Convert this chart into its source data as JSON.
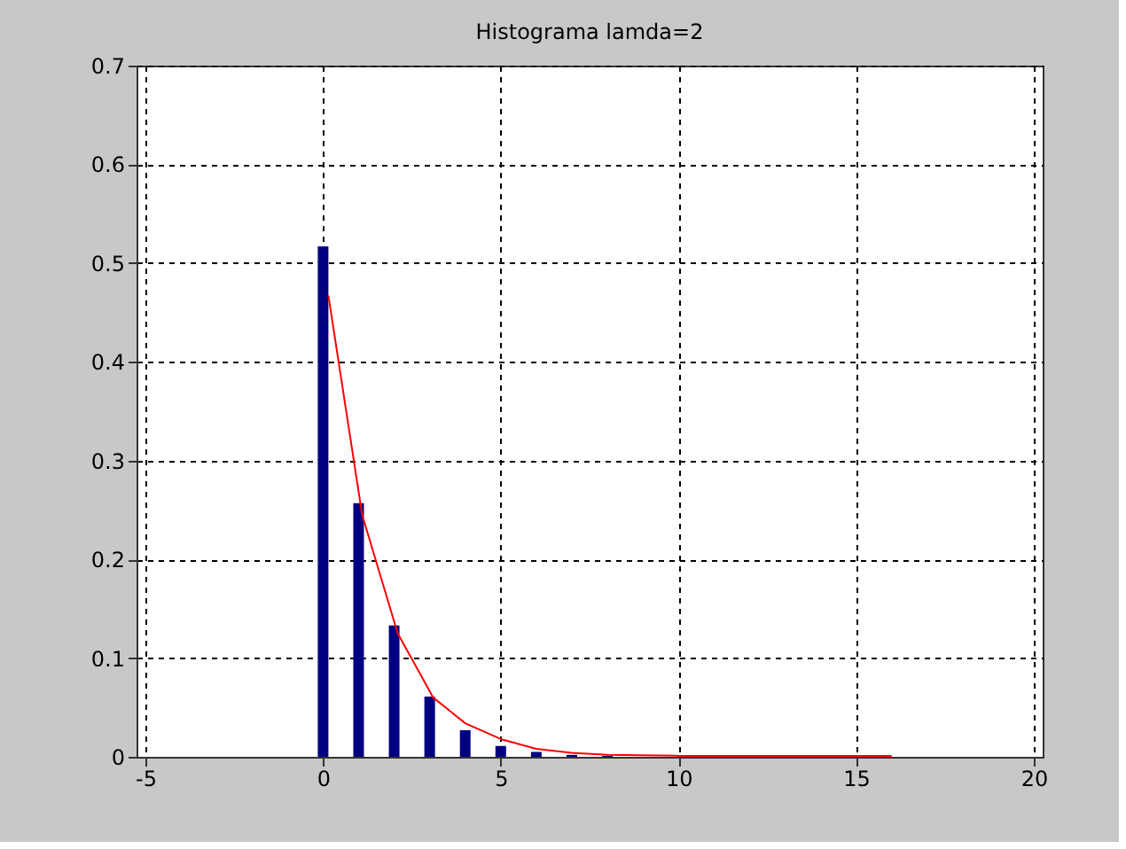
{
  "chart_data": {
    "type": "bar",
    "title": "Histograma lamda=2",
    "x": [
      0,
      1,
      2,
      3,
      4,
      5,
      6,
      7,
      8,
      9,
      10,
      11,
      12,
      13,
      14,
      15,
      16
    ],
    "series": [
      {
        "color": "#000080",
        "values": [
          0.517,
          0.257,
          0.133,
          0.061,
          0.027,
          0.011,
          0.005,
          0.002,
          0.001,
          0,
          0,
          0,
          0,
          0,
          0,
          0,
          0
        ]
      },
      {
        "type": "line",
        "color": "#ff0000",
        "x": [
          0.15,
          1.1,
          2.1,
          3.1,
          4,
          5,
          6,
          7,
          8,
          10,
          12,
          14,
          16
        ],
        "values": [
          0.467,
          0.245,
          0.125,
          0.06,
          0.034,
          0.018,
          0.008,
          0.004,
          0.002,
          0.001,
          0.001,
          0.001,
          0.001
        ]
      }
    ],
    "xlim": [
      -5,
      20
    ],
    "xticks": [
      -5,
      0,
      5,
      10,
      15,
      20
    ],
    "ylim": [
      0,
      0.7
    ],
    "yticks": [
      0,
      0.1,
      0.2,
      0.3,
      0.4,
      0.5,
      0.6,
      0.7
    ],
    "grid": true,
    "line_style": "solid"
  }
}
